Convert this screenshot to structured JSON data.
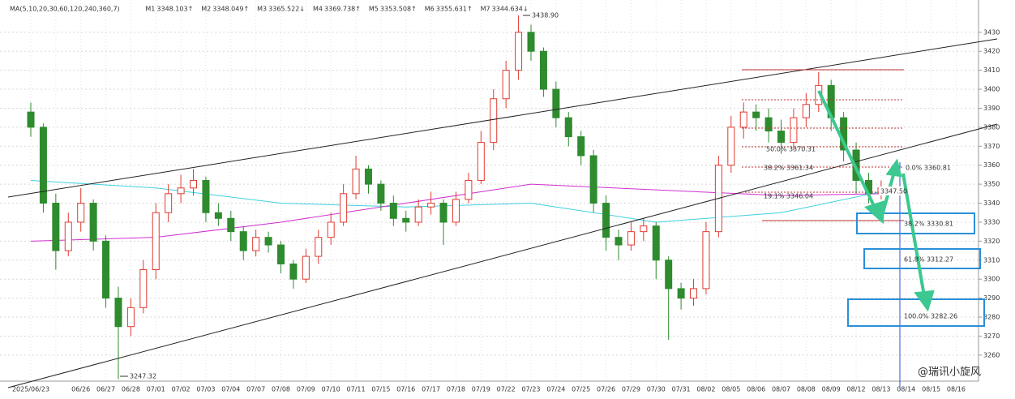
{
  "chart_data": {
    "type": "candlestick",
    "ma_title": "MA(5,10,20,30,60,120,240,360,7)",
    "ma_legend": [
      {
        "name": "M1",
        "label": "3348.103↑",
        "color": "#1a1a80"
      },
      {
        "name": "M2",
        "label": "3348.049↑",
        "color": "#c0504d"
      },
      {
        "name": "M3",
        "label": "3365.522↓",
        "color": "#808080"
      },
      {
        "name": "M4",
        "label": "3369.738↑",
        "color": "#d02020"
      },
      {
        "name": "M5",
        "label": "3353.508↑",
        "color": "#2e8b2e"
      },
      {
        "name": "M6",
        "label": "3355.631↑",
        "color": "#40d0e0"
      },
      {
        "name": "M7",
        "label": "3344.634↓",
        "color": "#d030d0"
      }
    ],
    "categories": [
      "2025/06/23",
      null,
      "06/26",
      "06/27",
      "06/28",
      "07/01",
      "07/02",
      "07/03",
      "07/04",
      "07/07",
      "07/08",
      "07/09",
      "07/10",
      "07/11",
      "07/15",
      "07/16",
      "07/17",
      "07/18",
      "07/19",
      "07/22",
      "07/23",
      "07/24",
      "07/25",
      "07/26",
      "07/29",
      "07/30",
      "07/31",
      "08/02",
      "08/05",
      "08/06",
      "08/07",
      "08/08",
      "08/09",
      "08/12",
      "08/13",
      "08/14",
      "08/15",
      "08/16"
    ],
    "candles": [
      [
        3388,
        3393,
        3375,
        3380
      ],
      [
        3380,
        3382,
        3335,
        3340
      ],
      [
        3340,
        3345,
        3305,
        3315
      ],
      [
        3315,
        3335,
        3312,
        3330
      ],
      [
        3330,
        3348,
        3325,
        3340
      ],
      [
        3340,
        3342,
        3315,
        3320
      ],
      [
        3320,
        3323,
        3285,
        3290
      ],
      [
        3290,
        3296,
        3247.32,
        3275
      ],
      [
        3275,
        3290,
        3270,
        3285
      ],
      [
        3285,
        3310,
        3282,
        3305
      ],
      [
        3305,
        3340,
        3300,
        3335
      ],
      [
        3335,
        3350,
        3330,
        3345
      ],
      [
        3345,
        3355,
        3340,
        3348
      ],
      [
        3348,
        3358,
        3344,
        3352
      ],
      [
        3352,
        3354,
        3330,
        3335
      ],
      [
        3335,
        3340,
        3328,
        3332
      ],
      [
        3332,
        3336,
        3320,
        3325
      ],
      [
        3325,
        3328,
        3310,
        3315
      ],
      [
        3315,
        3326,
        3312,
        3322
      ],
      [
        3322,
        3325,
        3314,
        3318
      ],
      [
        3318,
        3320,
        3303,
        3308
      ],
      [
        3308,
        3310,
        3295,
        3300
      ],
      [
        3300,
        3316,
        3298,
        3312
      ],
      [
        3312,
        3326,
        3308,
        3322
      ],
      [
        3322,
        3335,
        3318,
        3330
      ],
      [
        3330,
        3350,
        3328,
        3345
      ],
      [
        3345,
        3365,
        3342,
        3358
      ],
      [
        3358,
        3360,
        3345,
        3350
      ],
      [
        3350,
        3352,
        3336,
        3340
      ],
      [
        3340,
        3344,
        3328,
        3332
      ],
      [
        3332,
        3336,
        3325,
        3330
      ],
      [
        3330,
        3342,
        3328,
        3338
      ],
      [
        3338,
        3346,
        3334,
        3340
      ],
      [
        3340,
        3342,
        3318,
        3330
      ],
      [
        3330,
        3346,
        3328,
        3342
      ],
      [
        3342,
        3356,
        3340,
        3352
      ],
      [
        3352,
        3378,
        3350,
        3372
      ],
      [
        3372,
        3400,
        3368,
        3395
      ],
      [
        3395,
        3415,
        3390,
        3410
      ],
      [
        3410,
        3438.9,
        3405,
        3430
      ],
      [
        3430,
        3434,
        3415,
        3420
      ],
      [
        3420,
        3422,
        3396,
        3400
      ],
      [
        3400,
        3404,
        3380,
        3385
      ],
      [
        3385,
        3388,
        3370,
        3375
      ],
      [
        3375,
        3378,
        3360,
        3365
      ],
      [
        3365,
        3368,
        3335,
        3340
      ],
      [
        3340,
        3344,
        3315,
        3322
      ],
      [
        3322,
        3326,
        3310,
        3318
      ],
      [
        3318,
        3330,
        3315,
        3325
      ],
      [
        3325,
        3332,
        3320,
        3328
      ],
      [
        3328,
        3330,
        3300,
        3310
      ],
      [
        3310,
        3312,
        3268,
        3295
      ],
      [
        3295,
        3298,
        3284,
        3290
      ],
      [
        3290,
        3300,
        3286,
        3295
      ],
      [
        3295,
        3330,
        3292,
        3325
      ],
      [
        3325,
        3365,
        3322,
        3360
      ],
      [
        3360,
        3386,
        3356,
        3380
      ],
      [
        3380,
        3393,
        3374,
        3388
      ],
      [
        3388,
        3392,
        3378,
        3385
      ],
      [
        3385,
        3390,
        3372,
        3378
      ],
      [
        3378,
        3384,
        3366,
        3372
      ],
      [
        3372,
        3390,
        3368,
        3385
      ],
      [
        3385,
        3398,
        3380,
        3392
      ],
      [
        3392,
        3409,
        3388,
        3402
      ],
      [
        3402,
        3405,
        3378,
        3385
      ],
      [
        3385,
        3388,
        3362,
        3368
      ],
      [
        3368,
        3372,
        3345,
        3352
      ],
      [
        3352,
        3356,
        3340,
        3345
      ],
      [
        3345,
        3352,
        3342,
        3348
      ]
    ],
    "up_color": "#e03a30",
    "down_color": "#2e8b2e",
    "ma_lines": [
      {
        "name": "M6",
        "color": "#40d0e0",
        "x": [
          0,
          10,
          20,
          30,
          40,
          50,
          60,
          68
        ],
        "values": [
          3352,
          3348,
          3340,
          3338,
          3340,
          3330,
          3335,
          3346
        ]
      },
      {
        "name": "M7",
        "color": "#d030d0",
        "x": [
          0,
          10,
          20,
          30,
          40,
          50,
          60,
          68
        ],
        "values": [
          3320,
          3322,
          3330,
          3340,
          3350,
          3347,
          3344,
          3345
        ]
      }
    ],
    "ylim": [
      3242,
      3447
    ],
    "yticks": [
      3260,
      3270,
      3280,
      3290,
      3300,
      3310,
      3320,
      3330,
      3340,
      3350,
      3360,
      3370,
      3380,
      3390,
      3400,
      3410,
      3420,
      3430
    ],
    "grid": true,
    "high_label": "3438.90",
    "low_label": "3247.32",
    "last_label": "3347.50",
    "fib_labels": [
      "50.0% 3370.31",
      "38.2% 3361.34",
      "19.1% 3346.04",
      "0.0% 3360.81",
      "38.2% 3330.81",
      "61.8% 3312.27",
      "100.0% 3282.26"
    ],
    "watermark": "@瑞讯小旋风"
  }
}
